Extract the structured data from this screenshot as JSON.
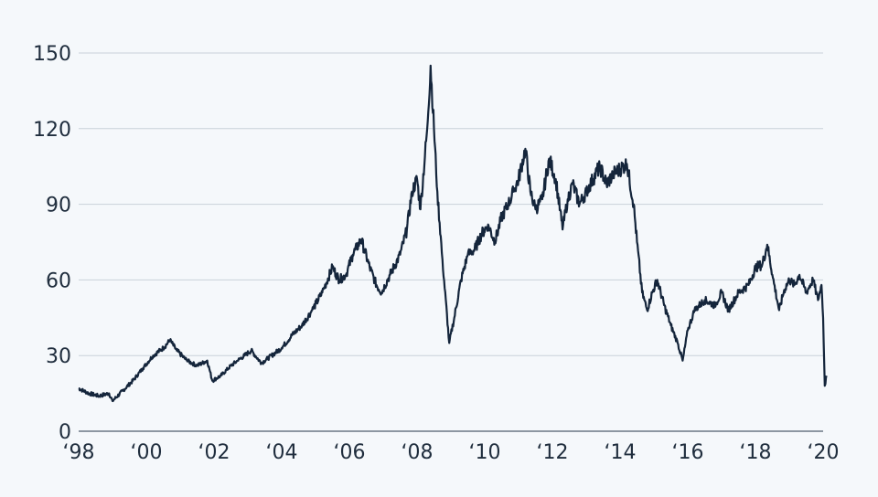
{
  "chart_data": {
    "type": "line",
    "title": "",
    "xlabel": "",
    "ylabel": "",
    "ylim": [
      0,
      150
    ],
    "xlim": [
      1998,
      2020
    ],
    "grid": true,
    "legend": "none",
    "yticks": [
      0,
      30,
      60,
      90,
      120,
      150
    ],
    "xtick_values": [
      1998,
      2000,
      2002,
      2004,
      2006,
      2008,
      2010,
      2012,
      2014,
      2016,
      2018,
      2020
    ],
    "xtick_labels": [
      "‘98",
      "‘00",
      "‘02",
      "‘04",
      "‘06",
      "‘08",
      "‘10",
      "‘12",
      "‘14",
      "‘16",
      "‘18",
      "‘20"
    ],
    "colors": {
      "line": "#14253b",
      "grid": "#c9d1d9",
      "background": "#f5f8fb"
    },
    "series": [
      {
        "x": [
          1998.0,
          1998.3,
          1998.6,
          1998.9,
          1999.0,
          1999.3,
          1999.6,
          1999.9,
          2000.2,
          2000.5,
          2000.7,
          2000.9,
          2001.2,
          2001.5,
          2001.8,
          2001.95,
          2002.2,
          2002.5,
          2002.7,
          2002.9,
          2003.1,
          2003.4,
          2003.7,
          2004.0,
          2004.3,
          2004.6,
          2004.9,
          2005.2,
          2005.5,
          2005.7,
          2005.9,
          2006.1,
          2006.35,
          2006.6,
          2006.8,
          2006.95,
          2007.2,
          2007.5,
          2007.7,
          2007.85,
          2008.0,
          2008.1,
          2008.3,
          2008.4,
          2008.5,
          2008.6,
          2008.75,
          2008.95,
          2009.1,
          2009.3,
          2009.5,
          2009.7,
          2009.9,
          2010.1,
          2010.3,
          2010.5,
          2010.7,
          2010.85,
          2011.0,
          2011.2,
          2011.35,
          2011.5,
          2011.7,
          2011.9,
          2012.1,
          2012.3,
          2012.45,
          2012.6,
          2012.8,
          2013.0,
          2013.2,
          2013.4,
          2013.6,
          2013.8,
          2014.0,
          2014.2,
          2014.4,
          2014.5,
          2014.65,
          2014.8,
          2014.95,
          2015.1,
          2015.3,
          2015.5,
          2015.7,
          2015.85,
          2016.0,
          2016.2,
          2016.5,
          2016.8,
          2017.0,
          2017.2,
          2017.5,
          2017.8,
          2018.0,
          2018.2,
          2018.35,
          2018.5,
          2018.7,
          2018.85,
          2019.0,
          2019.15,
          2019.3,
          2019.5,
          2019.7,
          2019.85,
          2019.95,
          2020.0,
          2020.05,
          2020.1
        ],
        "values": [
          17,
          15,
          14,
          15,
          12,
          16,
          20,
          25,
          30,
          33,
          36,
          32,
          28,
          26,
          28,
          20,
          22,
          26,
          28,
          30,
          32,
          27,
          30,
          33,
          38,
          42,
          48,
          55,
          65,
          60,
          62,
          70,
          76,
          65,
          58,
          55,
          62,
          70,
          80,
          95,
          100,
          88,
          120,
          145,
          120,
          95,
          68,
          35,
          45,
          60,
          70,
          72,
          78,
          82,
          75,
          85,
          90,
          95,
          100,
          112,
          95,
          88,
          92,
          108,
          100,
          80,
          92,
          98,
          90,
          95,
          100,
          105,
          98,
          102,
          104,
          106,
          90,
          75,
          55,
          48,
          55,
          60,
          50,
          42,
          35,
          28,
          40,
          48,
          52,
          50,
          55,
          48,
          55,
          58,
          65,
          66,
          74,
          62,
          48,
          56,
          60,
          58,
          62,
          55,
          60,
          52,
          58,
          45,
          18,
          22
        ]
      }
    ]
  }
}
